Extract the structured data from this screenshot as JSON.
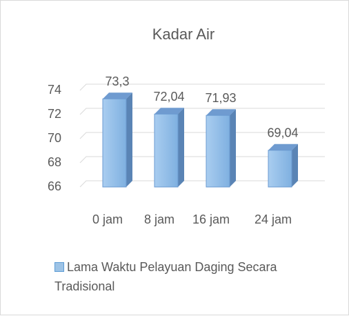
{
  "chart_data": {
    "type": "bar",
    "title": "Kadar Air",
    "categories": [
      "0 jam",
      "8 jam",
      "16 jam",
      "24 jam"
    ],
    "series": [
      {
        "name": "Lama Waktu Pelayuan Daging Secara Tradisional",
        "color": "#9dc3e6",
        "values": [
          73.3,
          72.04,
          71.93,
          69.04
        ],
        "value_labels": [
          "73,3",
          "72,04",
          "71,93",
          "69,04"
        ]
      }
    ],
    "ylim": [
      66,
      74
    ],
    "yticks": [
      66,
      68,
      70,
      72,
      74
    ],
    "grid": true,
    "legend": "bottom"
  }
}
